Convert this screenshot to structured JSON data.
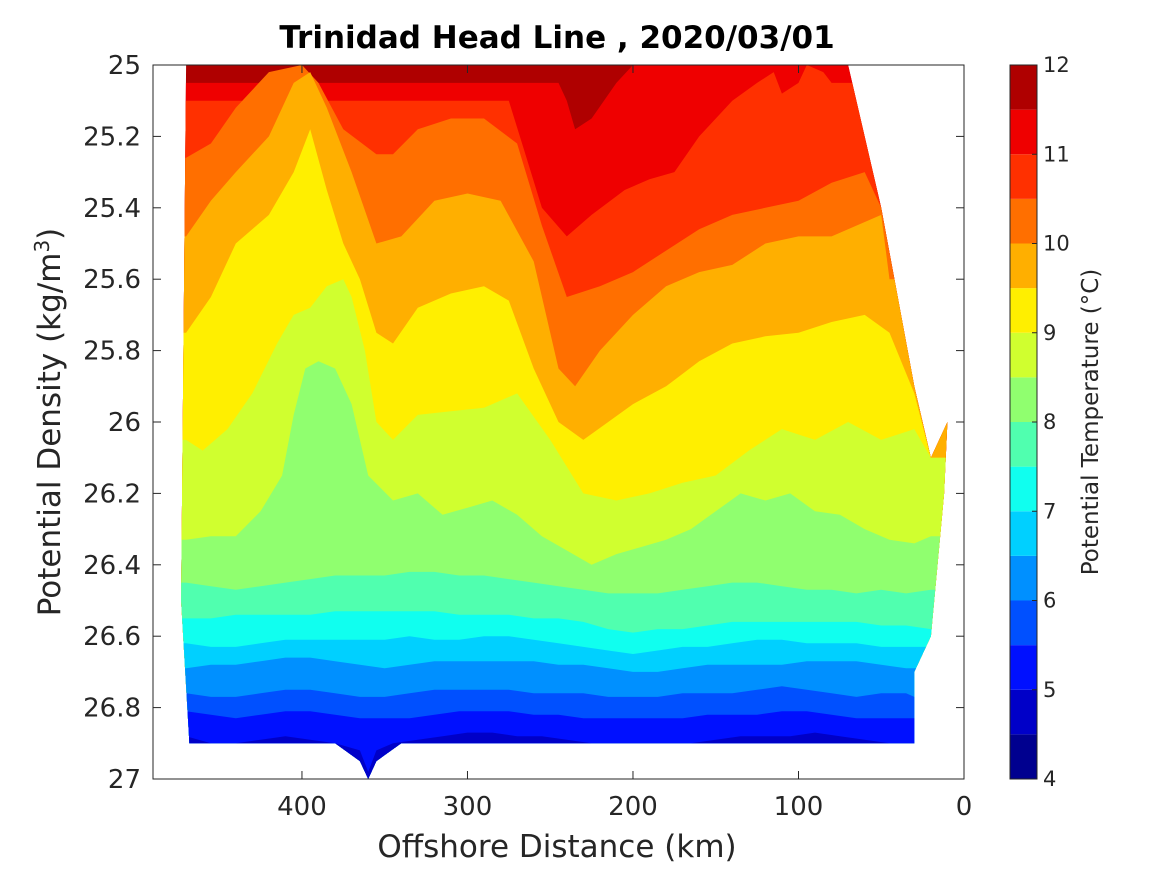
{
  "chart_data": {
    "type": "filled-contour",
    "title": "Trinidad Head Line , 2020/03/01",
    "xlabel": "Offshore Distance (km)",
    "ylabel": "Potential Density (kg/m",
    "ylabel_sup": "3",
    "ylabel_end": ")",
    "x_reversed": true,
    "y_reversed": true,
    "xlim": [
      0,
      490
    ],
    "ylim": [
      25,
      27
    ],
    "xticks": [
      400,
      300,
      200,
      100,
      0
    ],
    "xtick_labels": [
      "400",
      "300",
      "200",
      "100",
      "0"
    ],
    "yticks": [
      25,
      25.2,
      25.4,
      25.6,
      25.8,
      26,
      26.2,
      26.4,
      26.6,
      26.8,
      27
    ],
    "ytick_labels": [
      "25",
      "25.2",
      "25.4",
      "25.6",
      "25.8",
      "26",
      "26.2",
      "26.4",
      "26.6",
      "26.8",
      "27"
    ],
    "colorbar": {
      "label": "Potential Temperature (°C)",
      "range": [
        4,
        12
      ],
      "ticks": [
        4,
        5,
        6,
        7,
        8,
        9,
        10,
        11,
        12
      ],
      "tick_labels": [
        "4",
        "5",
        "6",
        "7",
        "8",
        "9",
        "10",
        "11",
        "12"
      ],
      "levels": [
        4,
        4.5,
        5,
        5.5,
        6,
        6.5,
        7,
        7.5,
        8,
        8.5,
        9,
        9.5,
        10,
        10.5,
        11,
        11.5,
        12
      ],
      "colors": [
        "#00008f",
        "#0000c8",
        "#0010ff",
        "#0050ff",
        "#0090ff",
        "#00d0ff",
        "#10ffef",
        "#50ffaf",
        "#90ff6f",
        "#d0ff2f",
        "#ffef00",
        "#ffaf00",
        "#ff6f00",
        "#ff3000",
        "#ef0000",
        "#af0000"
      ]
    },
    "data_extent": {
      "offshore_km": [
        468,
        473,
        470,
        440,
        400,
        360,
        330,
        300,
        250,
        200,
        150,
        100,
        70,
        50,
        30,
        20,
        10,
        12,
        20,
        30,
        30,
        70,
        100,
        150,
        200,
        250,
        300,
        340,
        355,
        360,
        365,
        380,
        420,
        468
      ],
      "density": [
        26.9,
        26.5,
        25.0,
        25.0,
        25.0,
        25.0,
        25.0,
        25.0,
        25.0,
        25.0,
        25.0,
        25.0,
        25.0,
        25.4,
        25.9,
        26.1,
        26.0,
        26.2,
        26.6,
        26.7,
        26.9,
        26.9,
        26.9,
        26.9,
        26.9,
        26.9,
        26.9,
        26.9,
        26.95,
        27.0,
        26.95,
        26.9,
        26.9,
        26.9
      ]
    },
    "isotherms": [
      {
        "level": 11.5,
        "offshore_km": [
          245,
          240,
          235,
          225,
          210,
          200
        ],
        "density": [
          25.05,
          25.1,
          25.18,
          25.15,
          25.05,
          25.0
        ]
      },
      {
        "level": 11,
        "offshore_km": [
          275,
          265,
          255,
          240,
          225,
          205,
          190,
          175,
          160,
          140,
          125,
          115,
          110,
          100,
          95,
          85,
          80
        ],
        "density": [
          25.1,
          25.25,
          25.4,
          25.48,
          25.42,
          25.35,
          25.32,
          25.3,
          25.2,
          25.1,
          25.05,
          25.02,
          25.08,
          25.05,
          25.0,
          25.02,
          25.05
        ]
      },
      {
        "level": 10.5,
        "offshore_km": [
          470,
          455,
          440,
          420,
          400,
          390,
          375,
          355,
          345,
          330,
          310,
          290,
          270,
          255,
          240,
          220,
          200,
          180,
          160,
          140,
          120,
          100,
          80,
          60,
          50
        ],
        "density": [
          25.26,
          25.22,
          25.12,
          25.02,
          25.0,
          25.05,
          25.18,
          25.25,
          25.25,
          25.18,
          25.15,
          25.15,
          25.22,
          25.45,
          25.65,
          25.62,
          25.58,
          25.52,
          25.46,
          25.42,
          25.4,
          25.38,
          25.33,
          25.3,
          25.4
        ]
      },
      {
        "level": 10,
        "offshore_km": [
          470,
          455,
          440,
          420,
          405,
          395,
          385,
          370,
          355,
          340,
          320,
          300,
          280,
          260,
          245,
          235,
          220,
          200,
          180,
          160,
          140,
          120,
          100,
          80,
          65,
          50,
          45
        ],
        "density": [
          25.48,
          25.38,
          25.3,
          25.2,
          25.05,
          25.02,
          25.12,
          25.3,
          25.5,
          25.48,
          25.38,
          25.36,
          25.38,
          25.55,
          25.85,
          25.9,
          25.8,
          25.7,
          25.62,
          25.58,
          25.56,
          25.5,
          25.48,
          25.48,
          25.45,
          25.42,
          25.6
        ]
      },
      {
        "level": 9.5,
        "offshore_km": [
          470,
          455,
          440,
          420,
          405,
          395,
          385,
          375,
          365,
          355,
          345,
          330,
          310,
          290,
          275,
          260,
          245,
          230,
          215,
          200,
          180,
          160,
          140,
          120,
          100,
          80,
          60,
          45,
          30,
          20
        ],
        "density": [
          25.75,
          25.65,
          25.5,
          25.42,
          25.3,
          25.18,
          25.35,
          25.5,
          25.6,
          25.75,
          25.78,
          25.68,
          25.64,
          25.62,
          25.66,
          25.85,
          26.0,
          26.05,
          26.0,
          25.95,
          25.9,
          25.83,
          25.78,
          25.76,
          25.75,
          25.72,
          25.7,
          25.75,
          25.92,
          26.1
        ]
      },
      {
        "level": 9,
        "offshore_km": [
          470,
          460,
          445,
          430,
          415,
          405,
          395,
          385,
          375,
          370,
          362,
          355,
          345,
          330,
          310,
          290,
          270,
          250,
          230,
          210,
          190,
          170,
          150,
          130,
          110,
          90,
          70,
          50,
          30,
          20
        ],
        "density": [
          26.05,
          26.08,
          26.02,
          25.92,
          25.78,
          25.7,
          25.68,
          25.62,
          25.6,
          25.65,
          25.8,
          26.0,
          26.05,
          25.98,
          25.97,
          25.96,
          25.92,
          26.05,
          26.2,
          26.22,
          26.2,
          26.17,
          26.15,
          26.08,
          26.02,
          26.05,
          26.0,
          26.05,
          26.02,
          26.1
        ]
      },
      {
        "level": 8.5,
        "offshore_km": [
          470,
          455,
          440,
          425,
          412,
          405,
          398,
          390,
          380,
          370,
          360,
          345,
          330,
          315,
          300,
          285,
          270,
          255,
          240,
          225,
          210,
          195,
          180,
          165,
          150,
          135,
          120,
          105,
          90,
          75,
          60,
          45,
          30,
          20
        ],
        "density": [
          26.33,
          26.32,
          26.32,
          26.25,
          26.15,
          25.98,
          25.85,
          25.83,
          25.85,
          25.95,
          26.15,
          26.22,
          26.2,
          26.26,
          26.24,
          26.22,
          26.26,
          26.32,
          26.36,
          26.4,
          26.37,
          26.35,
          26.33,
          26.3,
          26.25,
          26.2,
          26.22,
          26.2,
          26.25,
          26.26,
          26.3,
          26.33,
          26.34,
          26.32
        ]
      },
      {
        "level": 8,
        "offshore_km": [
          470,
          455,
          440,
          425,
          410,
          395,
          380,
          365,
          350,
          335,
          320,
          305,
          290,
          275,
          260,
          245,
          230,
          215,
          200,
          185,
          170,
          155,
          140,
          125,
          110,
          95,
          80,
          65,
          50,
          35,
          20
        ],
        "density": [
          26.45,
          26.46,
          26.47,
          26.46,
          26.45,
          26.44,
          26.43,
          26.43,
          26.43,
          26.42,
          26.42,
          26.43,
          26.43,
          26.44,
          26.45,
          26.46,
          26.47,
          26.48,
          26.48,
          26.48,
          26.47,
          26.46,
          26.45,
          26.45,
          26.46,
          26.47,
          26.47,
          26.48,
          26.47,
          26.48,
          26.47
        ]
      },
      {
        "level": 7.5,
        "offshore_km": [
          470,
          455,
          440,
          425,
          410,
          395,
          380,
          365,
          350,
          335,
          320,
          305,
          290,
          275,
          260,
          245,
          230,
          215,
          200,
          185,
          170,
          155,
          140,
          125,
          110,
          95,
          80,
          65,
          50,
          35,
          20
        ],
        "density": [
          26.55,
          26.55,
          26.54,
          26.54,
          26.54,
          26.54,
          26.53,
          26.53,
          26.53,
          26.53,
          26.53,
          26.54,
          26.54,
          26.54,
          26.55,
          26.55,
          26.56,
          26.58,
          26.59,
          26.58,
          26.58,
          26.57,
          26.56,
          26.56,
          26.56,
          26.56,
          26.56,
          26.56,
          26.57,
          26.57,
          26.58
        ]
      },
      {
        "level": 7,
        "offshore_km": [
          470,
          455,
          440,
          425,
          410,
          395,
          380,
          365,
          350,
          335,
          320,
          305,
          290,
          275,
          260,
          245,
          230,
          215,
          200,
          185,
          170,
          155,
          140,
          125,
          110,
          95,
          80,
          65,
          50,
          35,
          20
        ],
        "density": [
          26.62,
          26.63,
          26.63,
          26.62,
          26.61,
          26.61,
          26.61,
          26.61,
          26.61,
          26.6,
          26.61,
          26.61,
          26.6,
          26.6,
          26.61,
          26.62,
          26.63,
          26.64,
          26.65,
          26.64,
          26.63,
          26.63,
          26.62,
          26.61,
          26.61,
          26.62,
          26.62,
          26.62,
          26.63,
          26.63,
          26.63
        ]
      },
      {
        "level": 6.5,
        "offshore_km": [
          470,
          455,
          440,
          425,
          410,
          395,
          380,
          365,
          350,
          335,
          320,
          305,
          290,
          275,
          260,
          245,
          230,
          215,
          200,
          185,
          170,
          155,
          140,
          125,
          110,
          95,
          80,
          65,
          50,
          35,
          30
        ],
        "density": [
          26.69,
          26.68,
          26.68,
          26.67,
          26.66,
          26.66,
          26.67,
          26.68,
          26.69,
          26.68,
          26.67,
          26.67,
          26.67,
          26.67,
          26.67,
          26.68,
          26.68,
          26.69,
          26.7,
          26.7,
          26.69,
          26.68,
          26.68,
          26.68,
          26.68,
          26.67,
          26.67,
          26.67,
          26.68,
          26.69,
          26.69
        ]
      },
      {
        "level": 6,
        "offshore_km": [
          470,
          455,
          440,
          425,
          410,
          395,
          380,
          365,
          350,
          335,
          320,
          305,
          290,
          275,
          260,
          245,
          230,
          215,
          200,
          185,
          170,
          155,
          140,
          125,
          110,
          95,
          80,
          65,
          50,
          35,
          30
        ],
        "density": [
          26.76,
          26.77,
          26.77,
          26.76,
          26.75,
          26.75,
          26.76,
          26.77,
          26.77,
          26.76,
          26.75,
          26.75,
          26.75,
          26.75,
          26.76,
          26.76,
          26.76,
          26.77,
          26.77,
          26.77,
          26.76,
          26.76,
          26.76,
          26.75,
          26.74,
          26.75,
          26.76,
          26.77,
          26.76,
          26.76,
          26.77
        ]
      },
      {
        "level": 5.5,
        "offshore_km": [
          470,
          455,
          440,
          425,
          410,
          395,
          380,
          365,
          350,
          335,
          320,
          305,
          290,
          275,
          260,
          245,
          230,
          215,
          200,
          185,
          170,
          155,
          140,
          125,
          110,
          95,
          80,
          65,
          50,
          35,
          30
        ],
        "density": [
          26.81,
          26.82,
          26.83,
          26.82,
          26.81,
          26.81,
          26.82,
          26.83,
          26.83,
          26.83,
          26.82,
          26.81,
          26.81,
          26.81,
          26.82,
          26.82,
          26.83,
          26.83,
          26.83,
          26.83,
          26.83,
          26.82,
          26.82,
          26.82,
          26.81,
          26.81,
          26.82,
          26.83,
          26.83,
          26.83,
          26.83
        ]
      },
      {
        "level": 5,
        "offshore_km": [
          470,
          455,
          440,
          425,
          410,
          395,
          380,
          365,
          360,
          355,
          345,
          330,
          315,
          300,
          285,
          270,
          255,
          240,
          225,
          210,
          195,
          180,
          165,
          150,
          135,
          120,
          105,
          90,
          75,
          60,
          45,
          30
        ],
        "density": [
          26.88,
          26.9,
          26.9,
          26.89,
          26.88,
          26.89,
          26.9,
          26.92,
          26.98,
          26.92,
          26.9,
          26.89,
          26.88,
          26.87,
          26.87,
          26.88,
          26.88,
          26.89,
          26.9,
          26.9,
          26.9,
          26.9,
          26.9,
          26.89,
          26.88,
          26.88,
          26.88,
          26.87,
          26.88,
          26.89,
          26.9,
          26.9
        ]
      }
    ]
  }
}
